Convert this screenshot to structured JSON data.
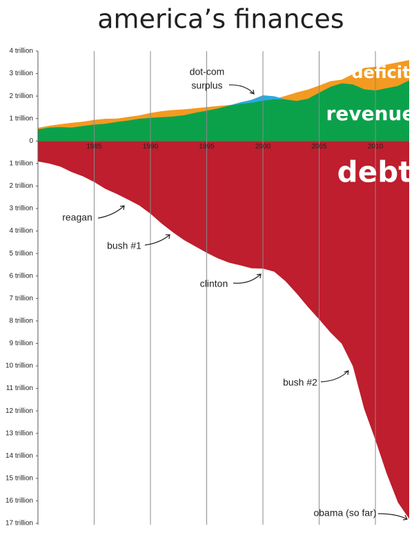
{
  "chart_data": {
    "type": "area",
    "title": "america’s finances",
    "x": [
      1980,
      1981,
      1982,
      1983,
      1984,
      1985,
      1986,
      1987,
      1988,
      1989,
      1990,
      1991,
      1992,
      1993,
      1994,
      1995,
      1996,
      1997,
      1998,
      1999,
      2000,
      2001,
      2002,
      2003,
      2004,
      2005,
      2006,
      2007,
      2008,
      2009,
      2010,
      2011,
      2012,
      2013
    ],
    "series": [
      {
        "name": "revenue",
        "color": "#0ba14b",
        "values": [
          0.52,
          0.6,
          0.62,
          0.6,
          0.67,
          0.73,
          0.77,
          0.85,
          0.91,
          0.99,
          1.03,
          1.06,
          1.09,
          1.15,
          1.26,
          1.35,
          1.45,
          1.58,
          1.72,
          1.83,
          2.03,
          1.99,
          1.85,
          1.78,
          1.88,
          2.15,
          2.41,
          2.57,
          2.52,
          2.3,
          2.25,
          2.35,
          2.45,
          2.7
        ]
      },
      {
        "name": "deficit",
        "color": "#f39a21",
        "values": [
          0.07,
          0.08,
          0.13,
          0.21,
          0.19,
          0.21,
          0.22,
          0.15,
          0.16,
          0.15,
          0.22,
          0.27,
          0.29,
          0.26,
          0.2,
          0.16,
          0.11,
          0.02,
          -0.07,
          -0.13,
          -0.24,
          -0.13,
          0.16,
          0.38,
          0.41,
          0.32,
          0.25,
          0.16,
          0.46,
          0.95,
          1.05,
          1.05,
          1.05,
          0.9
        ],
        "negative_color": "#2ea9df"
      },
      {
        "name": "debt",
        "color": "#be1e2d",
        "values": [
          -0.91,
          -1.0,
          -1.14,
          -1.38,
          -1.57,
          -1.82,
          -2.13,
          -2.35,
          -2.6,
          -2.86,
          -3.23,
          -3.67,
          -4.06,
          -4.41,
          -4.69,
          -4.97,
          -5.22,
          -5.41,
          -5.53,
          -5.66,
          -5.67,
          -5.81,
          -6.23,
          -6.78,
          -7.38,
          -7.93,
          -8.51,
          -9.01,
          -10.02,
          -11.91,
          -13.3,
          -14.79,
          -16.07,
          -16.8
        ]
      }
    ],
    "xlim": [
      1980,
      2013
    ],
    "xticks": [
      1985,
      1990,
      1995,
      2000,
      2005,
      2010
    ],
    "ylim": [
      -17,
      4
    ],
    "yticks": [
      {
        "value": 4,
        "label": "4 trillion"
      },
      {
        "value": 3,
        "label": "3 trillion"
      },
      {
        "value": 2,
        "label": "2 trillion"
      },
      {
        "value": 1,
        "label": "1 trillion"
      },
      0,
      {
        "value": -1,
        "label": "1 trillion"
      },
      {
        "value": -2,
        "label": "2 trillion"
      },
      {
        "value": -3,
        "label": "3 trillion"
      },
      {
        "value": -4,
        "label": "4 trillion"
      },
      {
        "value": -5,
        "label": "5 trillion"
      },
      {
        "value": -6,
        "label": "6 trillion"
      },
      {
        "value": -7,
        "label": "7 trillion"
      },
      {
        "value": -8,
        "label": "8 trillion"
      },
      {
        "value": -9,
        "label": "9 trillion"
      },
      {
        "value": -10,
        "label": "10 trillion"
      },
      {
        "value": -11,
        "label": "11 trillion"
      },
      {
        "value": -12,
        "label": "12 trillion"
      },
      {
        "value": -13,
        "label": "13 trillion"
      },
      {
        "value": -14,
        "label": "14 trillion"
      },
      {
        "value": -15,
        "label": "15 trillion"
      },
      {
        "value": -16,
        "label": "16 trillion"
      },
      {
        "value": -17,
        "label": "17 trillion"
      }
    ],
    "grid": "x",
    "annotations": [
      "dot-com",
      "surplus",
      "reagan",
      "bush #1",
      "clinton",
      "bush #2",
      "obama (so far)"
    ]
  }
}
